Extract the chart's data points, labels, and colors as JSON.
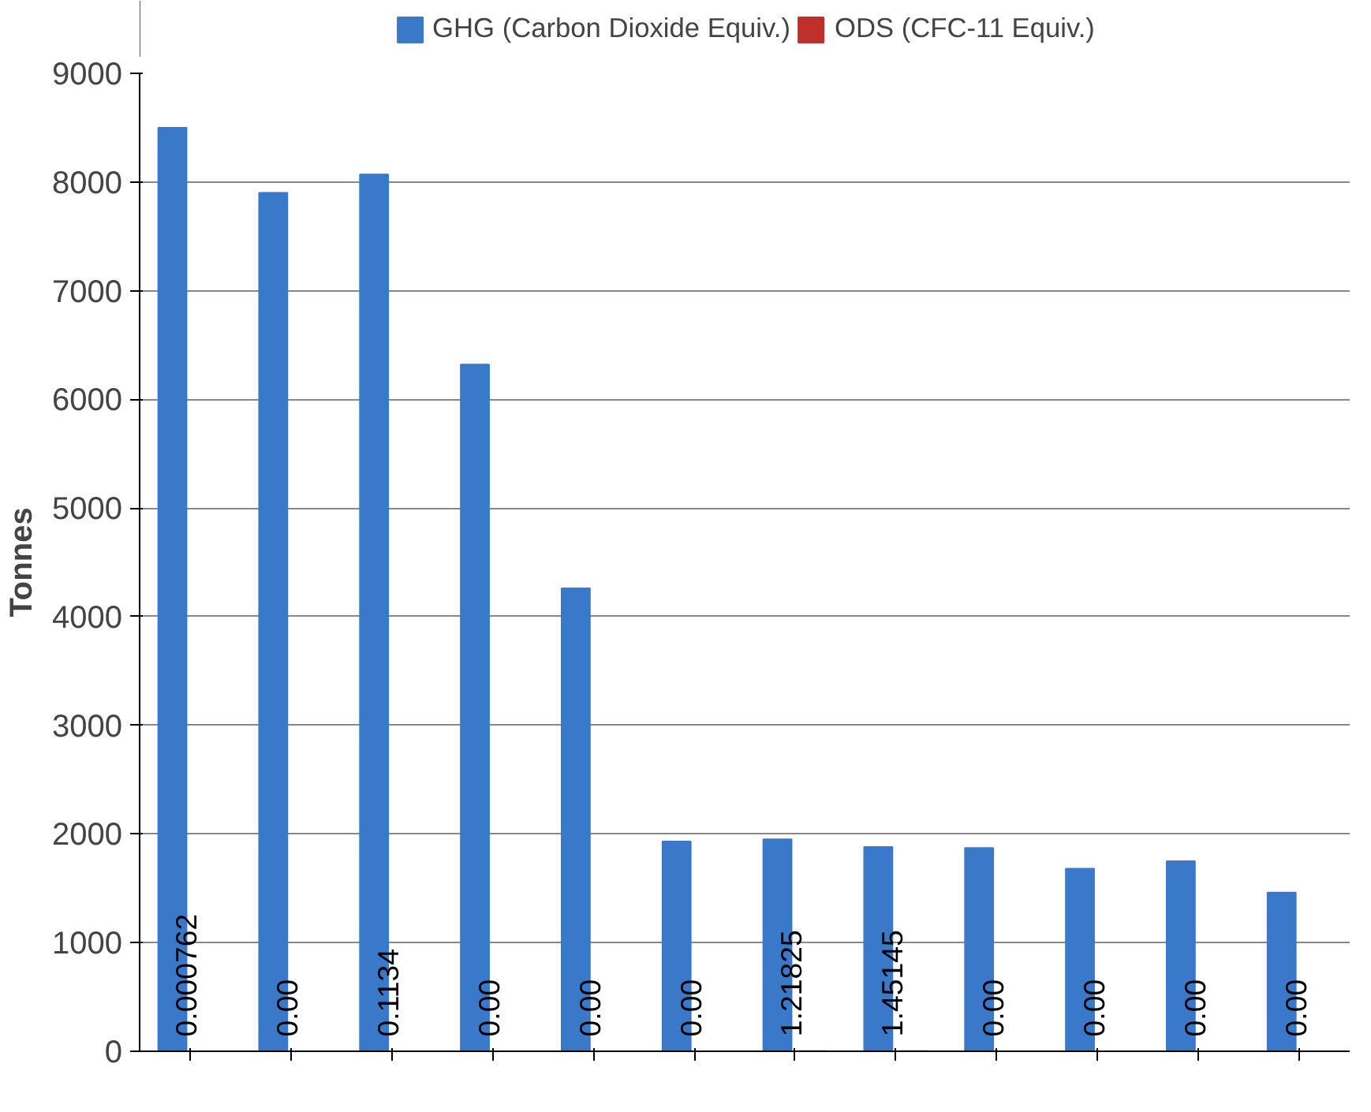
{
  "chart_data": {
    "type": "bar",
    "ylabel": "Tonnes",
    "categories": [
      null,
      null,
      null,
      null,
      null,
      null,
      null,
      null,
      null,
      null,
      null,
      null
    ],
    "series": [
      {
        "name": "GHG (Carbon Dioxide Equiv.)",
        "color": "#3a78c9",
        "values": [
          8500,
          7900,
          8070,
          6320,
          4260,
          1930,
          1950,
          1880,
          1870,
          1680,
          1750,
          1460
        ]
      },
      {
        "name": "ODS (CFC-11 Equiv.)",
        "color": "#c0302b",
        "values": [
          0.000762,
          0,
          0.1134,
          0,
          0,
          0,
          1.21825,
          1.45145,
          0,
          0,
          0,
          0
        ],
        "value_labels": [
          "0.000762",
          "0.00",
          "0.1134",
          "0.00",
          "0.00",
          "0.00",
          "1.21825",
          "1.45145",
          "0.00",
          "0.00",
          "0.00",
          "0.00"
        ]
      }
    ],
    "ylim": [
      0,
      9000
    ],
    "yticks": [
      0,
      1000,
      2000,
      3000,
      4000,
      5000,
      6000,
      7000,
      8000,
      9000
    ],
    "grid": "y",
    "legend": "top",
    "tick_labels": "y"
  }
}
